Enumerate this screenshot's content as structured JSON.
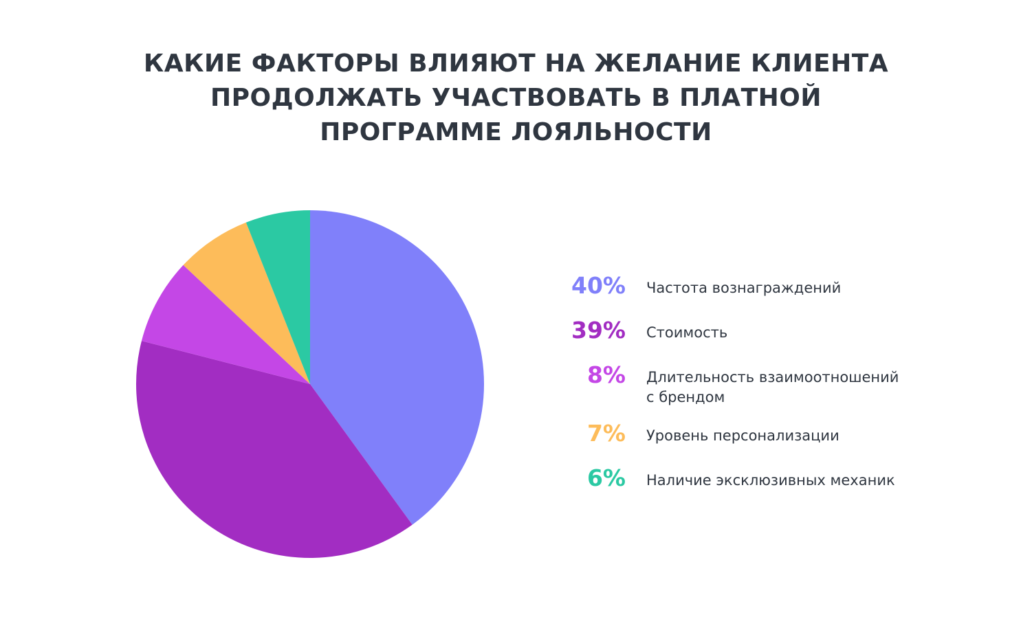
{
  "title_lines": [
    "КАКИЕ ФАКТОРЫ ВЛИЯЮТ НА ЖЕЛАНИЕ КЛИЕНТА",
    "ПРОДОЛЖАТЬ УЧАСТВОВАТЬ В ПЛАТНОЙ",
    "ПРОГРАММЕ ЛОЯЛЬНОСТИ"
  ],
  "chart_data": {
    "type": "pie",
    "title": "КАКИЕ ФАКТОРЫ ВЛИЯЮТ НА ЖЕЛАНИЕ КЛИЕНТА ПРОДОЛЖАТЬ УЧАСТВОВАТЬ В ПЛАТНОЙ ПРОГРАММЕ ЛОЯЛЬНОСТИ",
    "legend_placement": "right",
    "slices": [
      {
        "label_lines": [
          "Частота вознаграждений"
        ],
        "value": 40,
        "value_label": "40%",
        "color": "#8080fa"
      },
      {
        "label_lines": [
          "Стоимость"
        ],
        "value": 39,
        "value_label": "39%",
        "color": "#a22dc2"
      },
      {
        "label_lines": [
          "Длительность взаимоотношений",
          "с брендом"
        ],
        "value": 8,
        "value_label": "8%",
        "color": "#c447e6"
      },
      {
        "label_lines": [
          "Уровень персонализации"
        ],
        "value": 7,
        "value_label": "7%",
        "color": "#fdbc5a"
      },
      {
        "label_lines": [
          "Наличие эксклюзивных механик"
        ],
        "value": 6,
        "value_label": "6%",
        "color": "#2bc9a3"
      }
    ]
  }
}
